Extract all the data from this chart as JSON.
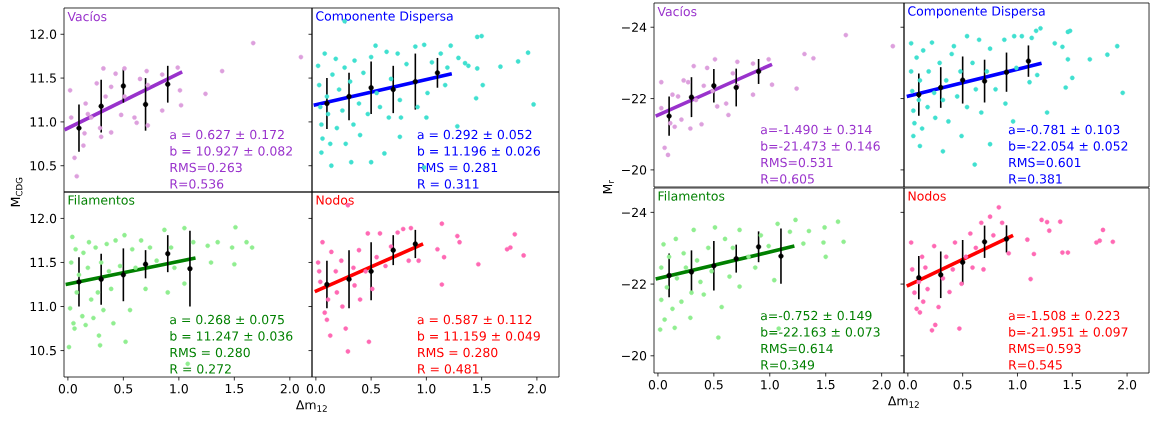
{
  "chart_data": [
    {
      "type": "scatter",
      "title": "Vacíos",
      "ylabel": "M$_{CDG}$",
      "xlim": [
        -0.035,
        2.2
      ],
      "ylim": [
        10.2,
        12.3
      ],
      "yticks": [
        {
          "value": 10.5,
          "label": "10.5"
        },
        {
          "value": 11,
          "label": "11.0"
        },
        {
          "value": 11.5,
          "label": "11.5"
        },
        {
          "value": 12,
          "label": "12.0"
        }
      ],
      "tick_labels": "y",
      "annotations": [
        "a = 0.627 ± 0.172",
        "b = 10.927 ± 0.082",
        "RMS=0.263",
        "R=0.536"
      ],
      "series": [
        {
          "type": "scatter",
          "marker": "circle",
          "color": "#dda0dd",
          "x": [
            0.02,
            0.03,
            0.06,
            0.08,
            0.14,
            0.16,
            0.15,
            0.18,
            0.21,
            0.26,
            0.29,
            0.3,
            0.32,
            0.34,
            0.39,
            0.39,
            0.43,
            0.48,
            0.51,
            0.51,
            0.6,
            0.62,
            0.65,
            0.71,
            0.72,
            0.72,
            0.85,
            0.85,
            0.99,
            1.01,
            1.02,
            1.24,
            1.39,
            1.67,
            2.1
          ],
          "values": [
            11.36,
            11.05,
            10.59,
            10.38,
            10.73,
            11.21,
            10.87,
            11.09,
            11.05,
            11.44,
            10.93,
            10.83,
            11.61,
            11.29,
            11.4,
            10.88,
            11.55,
            11.08,
            11.61,
            11.29,
            11.05,
            10.99,
            11.49,
            11.58,
            10.96,
            11.42,
            11.13,
            11.54,
            11.62,
            11.36,
            11.19,
            11.32,
            11.58,
            11.9,
            11.74
          ]
        },
        {
          "type": "line",
          "marker": "none",
          "color": "#9932cc",
          "x": [
            -0.03,
            1.03
          ],
          "values": [
            10.91,
            11.57
          ]
        },
        {
          "type": "scatter",
          "marker": "circle",
          "color": "#000000",
          "x": [
            0.1,
            0.3,
            0.5,
            0.7,
            0.9
          ],
          "values": [
            10.93,
            11.18,
            11.41,
            11.2,
            11.43
          ],
          "errors": [
            0.27,
            0.3,
            0.19,
            0.3,
            0.21
          ]
        }
      ]
    },
    {
      "type": "scatter",
      "title": "Componente Dispersa",
      "xlim": [
        -0.035,
        2.2
      ],
      "ylim": [
        10.2,
        12.3
      ],
      "yticks": [
        {
          "value": 10.5,
          "label": null
        },
        {
          "value": 11,
          "label": null
        },
        {
          "value": 11.5,
          "label": null
        },
        {
          "value": 12,
          "label": null
        }
      ],
      "tick_labels": false,
      "annotations": [
        "a = 0.292 ± 0.052",
        "b = 11.196 ± 0.026",
        "RMS = 0.281",
        "R = 0.311"
      ],
      "series": [
        {
          "type": "scatter",
          "marker": "circle",
          "color": "#40e0d0",
          "x": [
            0.26,
            1.46,
            1.5,
            1.29,
            1.35,
            1.38,
            1.46,
            1.67,
            1.83,
            1.92,
            1.97,
            1.51,
            1.45,
            1.28,
            0.98,
            0.62,
            0.5,
            0.32,
            0.14,
            0.05,
            0.02,
            0.03,
            0.04,
            0.05,
            0.06,
            0.08,
            0.1,
            0.11,
            0.13,
            0.15,
            0.18,
            0.19,
            0.21,
            0.24,
            0.26,
            0.27,
            0.31,
            0.34,
            0.35,
            0.39,
            0.4,
            0.43,
            0.47,
            0.5,
            0.54,
            0.55,
            0.58,
            0.64,
            0.66,
            0.68,
            0.74,
            0.76,
            0.77,
            0.82,
            0.9,
            0.92,
            0.98,
            1.01,
            1.05,
            1.0,
            1.13,
            1.17,
            1.22,
            1.19,
            0.76
          ],
          "values": [
            12.15,
            11.97,
            11.98,
            11.73,
            11.67,
            11.64,
            11.61,
            11.63,
            11.69,
            11.79,
            11.2,
            11.42,
            11.27,
            10.95,
            10.48,
            10.64,
            10.54,
            10.54,
            10.5,
            10.65,
            11.64,
            11.42,
            11.17,
            10.97,
            10.81,
            11.78,
            11.29,
            11.09,
            10.75,
            11.54,
            11.72,
            10.93,
            11.37,
            11.13,
            11.62,
            10.75,
            11.46,
            10.97,
            11.7,
            11.21,
            10.85,
            11.56,
            11.09,
            11.74,
            11.87,
            11.33,
            11.17,
            11.8,
            11.05,
            11.49,
            11.78,
            11.25,
            11.05,
            11.66,
            11.86,
            11.17,
            11.88,
            11.33,
            11.68,
            11.05,
            11.78,
            11.42,
            11.87,
            11.62,
            10.83
          ]
        },
        {
          "type": "line",
          "marker": "none",
          "color": "#0000ff",
          "x": [
            -0.02,
            1.23
          ],
          "values": [
            11.19,
            11.55
          ]
        },
        {
          "type": "scatter",
          "marker": "circle",
          "color": "#000000",
          "x": [
            0.1,
            0.3,
            0.5,
            0.7,
            0.9,
            1.1
          ],
          "values": [
            11.21,
            11.29,
            11.39,
            11.37,
            11.46,
            11.56
          ],
          "errors": [
            0.29,
            0.27,
            0.3,
            0.27,
            0.32,
            0.17
          ]
        }
      ]
    },
    {
      "type": "scatter",
      "title": "Filamentos",
      "xlabel": "Δm$_{12}$",
      "xlim": [
        -0.035,
        2.2
      ],
      "ylim": [
        10.2,
        12.3
      ],
      "xticks": [
        {
          "value": 0,
          "label": "0.0"
        },
        {
          "value": 0.5,
          "label": "0.5"
        },
        {
          "value": 1,
          "label": "1.0"
        },
        {
          "value": 1.5,
          "label": "1.5"
        },
        {
          "value": 2,
          "label": "2.0"
        }
      ],
      "yticks": [
        {
          "value": 10.5,
          "label": "10.5"
        },
        {
          "value": 11,
          "label": "11.0"
        },
        {
          "value": 11.5,
          "label": "11.5"
        },
        {
          "value": 12,
          "label": "12.0"
        }
      ],
      "annotations": [
        "a = 0.268 ± 0.075",
        "b = 11.247 ± 0.036",
        "RMS = 0.280",
        "R = 0.272"
      ],
      "series": [
        {
          "type": "scatter",
          "marker": "circle",
          "color": "#90ee90",
          "x": [
            0.01,
            0.02,
            0.03,
            0.04,
            0.05,
            0.06,
            0.07,
            0.08,
            0.1,
            0.13,
            0.14,
            0.16,
            0.18,
            0.19,
            0.21,
            0.23,
            0.25,
            0.27,
            0.28,
            0.29,
            0.3,
            0.32,
            0.35,
            0.37,
            0.39,
            0.41,
            0.43,
            0.47,
            0.51,
            0.52,
            0.56,
            0.58,
            0.61,
            0.66,
            0.7,
            0.74,
            0.8,
            0.87,
            0.9,
            0.93,
            0.96,
            1.05,
            1.05,
            1.08,
            1.13,
            1.26,
            1.29,
            1.35,
            1.48,
            1.51,
            1.5,
            1.61,
            1.66
          ],
          "values": [
            10.54,
            10.98,
            11.5,
            11.79,
            10.81,
            10.75,
            11.65,
            11.16,
            11.36,
            10.89,
            11.61,
            10.79,
            11.44,
            11.73,
            11.08,
            10.87,
            11.67,
            11.16,
            10.67,
            10.56,
            11.5,
            10.96,
            11.71,
            11.4,
            11.2,
            10.81,
            11.75,
            11.46,
            11.81,
            10.6,
            10.96,
            11.65,
            11.44,
            11.75,
            11.2,
            11.67,
            11.52,
            11.87,
            11.16,
            11.67,
            11.44,
            11.89,
            11.26,
            10.35,
            11.73,
            11.69,
            11.5,
            11.73,
            11.67,
            11.9,
            11.48,
            11.73,
            11.67
          ]
        },
        {
          "type": "line",
          "marker": "none",
          "color": "#008000",
          "x": [
            -0.02,
            1.15
          ],
          "values": [
            11.25,
            11.55
          ]
        },
        {
          "type": "scatter",
          "marker": "circle",
          "color": "#000000",
          "x": [
            0.1,
            0.3,
            0.5,
            0.7,
            0.9,
            1.1
          ],
          "values": [
            11.28,
            11.31,
            11.36,
            11.48,
            11.6,
            11.43
          ],
          "errors": [
            0.28,
            0.29,
            0.3,
            0.16,
            0.21,
            0.43
          ]
        }
      ]
    },
    {
      "type": "scatter",
      "title": "Nodos",
      "xlim": [
        -0.035,
        2.2
      ],
      "ylim": [
        10.2,
        12.3
      ],
      "xticks": [
        {
          "value": 0,
          "label": "0.0"
        },
        {
          "value": 0.5,
          "label": "0.5"
        },
        {
          "value": 1,
          "label": "1.0"
        },
        {
          "value": 1.5,
          "label": "1.5"
        },
        {
          "value": 2,
          "label": "2.0"
        }
      ],
      "yticks": [
        {
          "value": 10.5,
          "label": null
        },
        {
          "value": 11,
          "label": null
        },
        {
          "value": 11.5,
          "label": null
        },
        {
          "value": 12,
          "label": null
        }
      ],
      "tick_labels": "x",
      "annotations": [
        "a = 0.587 ± 0.112",
        "b = 11.159 ± 0.049",
        "RMS = 0.280",
        "R = 0.481"
      ],
      "series": [
        {
          "type": "scatter",
          "marker": "circle",
          "color": "#ff69b4",
          "x": [
            0.02,
            0.03,
            0.04,
            0.06,
            0.08,
            0.1,
            0.11,
            0.13,
            0.14,
            0.18,
            0.19,
            0.23,
            0.24,
            0.27,
            0.29,
            0.29,
            0.34,
            0.35,
            0.39,
            0.4,
            0.45,
            0.47,
            0.48,
            0.51,
            0.55,
            0.58,
            0.63,
            0.68,
            0.74,
            0.79,
            0.84,
            0.86,
            0.93,
            1.1,
            1.14,
            1.16,
            1.14,
            1.28,
            1.3,
            1.47,
            1.73,
            1.76,
            1.8,
            1.88
          ],
          "values": [
            11.5,
            11.4,
            11.28,
            11.73,
            10.93,
            10.85,
            11.08,
            10.67,
            11.62,
            11.4,
            11.16,
            11.52,
            11.0,
            10.75,
            10.49,
            12.15,
            11.44,
            11.24,
            11.64,
            11.08,
            11.4,
            11.83,
            10.6,
            11.2,
            11.56,
            11.83,
            11.46,
            11.68,
            11.84,
            11.88,
            11.52,
            11.89,
            11.52,
            11.65,
            11.94,
            11.56,
            11.25,
            11.8,
            11.73,
            11.48,
            11.65,
            11.67,
            11.82,
            11.58
          ]
        },
        {
          "type": "line",
          "marker": "none",
          "color": "#ff0000",
          "x": [
            -0.01,
            0.97
          ],
          "values": [
            11.17,
            11.71
          ]
        },
        {
          "type": "scatter",
          "marker": "circle",
          "color": "#000000",
          "x": [
            0.1,
            0.3,
            0.5,
            0.7,
            0.9
          ],
          "values": [
            11.25,
            11.31,
            11.4,
            11.64,
            11.71
          ],
          "errors": [
            0.27,
            0.33,
            0.33,
            0.17,
            0.16
          ]
        }
      ]
    },
    {
      "type": "scatter",
      "title": "Vacíos",
      "ylabel": "M$_{r}$",
      "xlim": [
        -0.035,
        2.2
      ],
      "ylim": [
        -19.52,
        -24.68
      ],
      "yticks": [
        {
          "value": -24,
          "label": "−24"
        },
        {
          "value": -22,
          "label": "−22"
        },
        {
          "value": -20,
          "label": "−20"
        }
      ],
      "tick_labels": "y",
      "annotations": [
        "a=-1.490 ± 0.314",
        "b=-21.473 ± 0.146",
        "RMS=0.531",
        "R=0.605"
      ],
      "series": [
        {
          "type": "scatter",
          "marker": "circle",
          "color": "#dda0dd",
          "x": [
            0.03,
            0.03,
            0.06,
            0.09,
            0.11,
            0.13,
            0.15,
            0.18,
            0.21,
            0.23,
            0.27,
            0.29,
            0.32,
            0.34,
            0.39,
            0.41,
            0.44,
            0.49,
            0.51,
            0.53,
            0.61,
            0.63,
            0.67,
            0.71,
            0.71,
            0.85,
            0.85,
            0.99,
            1.02,
            1.24,
            1.31,
            1.39,
            1.68,
            2.1
          ],
          "values": [
            -22.46,
            -21.73,
            -20.62,
            -20.42,
            -21.31,
            -22.11,
            -21.21,
            -22.06,
            -21.41,
            -22.51,
            -22.46,
            -21.16,
            -22.91,
            -21.96,
            -21.28,
            -22.36,
            -22.86,
            -22.21,
            -23.1,
            -21.78,
            -21.86,
            -21.54,
            -22.71,
            -23.03,
            -22.36,
            -22.11,
            -22.98,
            -23.1,
            -22.39,
            -22.28,
            -23.25,
            -23.13,
            -23.78,
            -23.47
          ]
        },
        {
          "type": "line",
          "marker": "none",
          "color": "#9932cc",
          "x": [
            -0.02,
            1.02
          ],
          "values": [
            -21.51,
            -22.96
          ]
        },
        {
          "type": "scatter",
          "marker": "circle",
          "color": "#000000",
          "x": [
            0.1,
            0.3,
            0.5,
            0.7,
            0.9
          ],
          "values": [
            -21.51,
            -22.04,
            -22.36,
            -22.31,
            -22.76
          ],
          "errors": [
            0.55,
            0.56,
            0.47,
            0.53,
            0.35
          ]
        }
      ]
    },
    {
      "type": "scatter",
      "title": "Componente Dispersa",
      "xlim": [
        -0.035,
        2.2
      ],
      "ylim": [
        -19.52,
        -24.68
      ],
      "yticks": [
        {
          "value": -24,
          "label": null
        },
        {
          "value": -22,
          "label": null
        },
        {
          "value": -20,
          "label": null
        }
      ],
      "tick_labels": false,
      "annotations": [
        "a=-0.781 ± 0.103",
        "b=-22.054 ± 0.052",
        "RMS=0.601",
        "R=0.381"
      ],
      "series": [
        {
          "type": "scatter",
          "marker": "circle",
          "color": "#40e0d0",
          "x": [
            1.21,
            1.17,
            1.46,
            1.48,
            1.34,
            1.41,
            1.46,
            1.66,
            1.82,
            1.91,
            1.96,
            1.5,
            1.44,
            1.27,
            0.96,
            0.75,
            0.61,
            0.32,
            0.11,
            0.05,
            0.49,
            0.03,
            0.03,
            0.04,
            0.05,
            0.06,
            0.08,
            0.1,
            0.11,
            0.13,
            0.14,
            0.18,
            0.19,
            0.22,
            0.24,
            0.25,
            0.29,
            0.32,
            0.35,
            0.37,
            0.4,
            0.42,
            0.45,
            0.48,
            0.54,
            0.54,
            0.59,
            0.62,
            0.65,
            0.67,
            0.72,
            0.75,
            0.8,
            0.88,
            0.89,
            0.97,
            0.99,
            1.04,
            1.13,
            1.18,
            1.11
          ],
          "values": [
            -23.97,
            -23.9,
            -23.87,
            -23.9,
            -23.55,
            -23.45,
            -23.1,
            -23.1,
            -23.23,
            -23.47,
            -22.16,
            -22.58,
            -22.31,
            -21.61,
            -21.36,
            -20.72,
            -20.15,
            -20.52,
            -20.67,
            -20.95,
            -20.95,
            -23.55,
            -22.76,
            -22.21,
            -21.66,
            -21.31,
            -23.15,
            -21.96,
            -22.51,
            -21.16,
            -23.35,
            -21.76,
            -22.76,
            -23.57,
            -22.16,
            -21.46,
            -23.0,
            -21.96,
            -22.51,
            -21.36,
            -23.25,
            -23.47,
            -22.06,
            -22.76,
            -23.75,
            -21.76,
            -23.0,
            -22.26,
            -23.65,
            -21.61,
            -22.76,
            -23.4,
            -22.26,
            -23.65,
            -21.86,
            -23.75,
            -22.86,
            -23.75,
            -23.7,
            -22.66,
            -22.46
          ]
        },
        {
          "type": "line",
          "marker": "none",
          "color": "#0000ff",
          "x": [
            -0.01,
            1.22
          ],
          "values": [
            -22.06,
            -22.99
          ]
        },
        {
          "type": "scatter",
          "marker": "circle",
          "color": "#000000",
          "x": [
            0.1,
            0.3,
            0.5,
            0.7,
            0.9,
            1.1
          ],
          "values": [
            -22.11,
            -22.31,
            -22.52,
            -22.49,
            -22.74,
            -23.05
          ],
          "errors": [
            0.59,
            0.57,
            0.66,
            0.6,
            0.55,
            0.44
          ]
        }
      ]
    },
    {
      "type": "scatter",
      "title": "Filamentos",
      "xlabel": "Δm$_{12}$",
      "xlim": [
        -0.035,
        2.2
      ],
      "ylim": [
        -19.52,
        -24.68
      ],
      "xticks": [
        {
          "value": 0,
          "label": "0.0"
        },
        {
          "value": 0.5,
          "label": "0.5"
        },
        {
          "value": 1,
          "label": "1.0"
        },
        {
          "value": 1.5,
          "label": "1.5"
        },
        {
          "value": 2,
          "label": "2.0"
        }
      ],
      "yticks": [
        {
          "value": -24,
          "label": "−24"
        },
        {
          "value": -22,
          "label": "−22"
        },
        {
          "value": -20,
          "label": "−20"
        }
      ],
      "annotations": [
        "a=-0.752 ± 0.149",
        "b=-22.163 ± 0.073",
        "RMS=0.614",
        "R=0.349"
      ],
      "series": [
        {
          "type": "scatter",
          "marker": "circle",
          "color": "#90ee90",
          "x": [
            0.02,
            0.03,
            0.03,
            0.05,
            0.06,
            0.08,
            0.1,
            0.13,
            0.15,
            0.16,
            0.17,
            0.21,
            0.23,
            0.25,
            0.29,
            0.3,
            0.32,
            0.35,
            0.38,
            0.41,
            0.45,
            0.48,
            0.51,
            0.54,
            0.57,
            0.6,
            0.64,
            0.67,
            0.73,
            0.73,
            0.81,
            0.87,
            0.92,
            0.99,
            1.04,
            1.07,
            1.08,
            1.18,
            1.23,
            1.3,
            1.35,
            1.49,
            1.5,
            1.61,
            1.66,
            1.48
          ],
          "values": [
            -20.73,
            -21.56,
            -22.46,
            -23.11,
            -21.01,
            -21.91,
            -22.76,
            -21.31,
            -20.78,
            -23.26,
            -22.16,
            -21.51,
            -22.86,
            -22.46,
            -21.06,
            -21.76,
            -23.51,
            -22.66,
            -22.06,
            -21.71,
            -23.01,
            -22.36,
            -23.58,
            -20.51,
            -21.36,
            -23.26,
            -22.21,
            -23.01,
            -23.51,
            -21.93,
            -22.76,
            -22.46,
            -23.36,
            -23.06,
            -22.11,
            -23.68,
            -20.76,
            -23.46,
            -23.79,
            -23.13,
            -23.48,
            -23.58,
            -22.76,
            -23.74,
            -23.18,
            -23.16
          ]
        },
        {
          "type": "line",
          "marker": "none",
          "color": "#008000",
          "x": [
            -0.02,
            1.22
          ],
          "values": [
            -22.14,
            -23.06
          ]
        },
        {
          "type": "scatter",
          "marker": "circle",
          "color": "#000000",
          "x": [
            0.1,
            0.3,
            0.5,
            0.7,
            0.9,
            1.1
          ],
          "values": [
            -22.24,
            -22.34,
            -22.51,
            -22.71,
            -23.04,
            -22.78
          ],
          "errors": [
            0.61,
            0.6,
            0.69,
            0.39,
            0.43,
            0.77
          ]
        }
      ]
    },
    {
      "type": "scatter",
      "title": "Nodos",
      "xlim": [
        -0.035,
        2.2
      ],
      "ylim": [
        -19.52,
        -24.68
      ],
      "xticks": [
        {
          "value": 0,
          "label": "0.0"
        },
        {
          "value": 0.5,
          "label": "0.5"
        },
        {
          "value": 1,
          "label": "1.0"
        },
        {
          "value": 1.5,
          "label": "1.5"
        },
        {
          "value": 2,
          "label": "2.0"
        }
      ],
      "yticks": [
        {
          "value": -24,
          "label": null
        },
        {
          "value": -22,
          "label": null
        },
        {
          "value": -20,
          "label": null
        }
      ],
      "tick_labels": "x",
      "annotations": [
        "a=-1.508 ± 0.223",
        "b=-21.951 ± 0.097",
        "RMS=0.593",
        "R=0.545"
      ],
      "series": [
        {
          "type": "scatter",
          "marker": "circle",
          "color": "#ff69b4",
          "x": [
            0.03,
            0.04,
            0.06,
            0.08,
            0.1,
            0.11,
            0.13,
            0.14,
            0.16,
            0.18,
            0.22,
            0.24,
            0.25,
            0.28,
            0.32,
            0.35,
            0.38,
            0.41,
            0.43,
            0.47,
            0.49,
            0.53,
            0.57,
            0.59,
            0.62,
            0.67,
            0.69,
            0.75,
            0.78,
            0.83,
            0.86,
            0.92,
            1.09,
            1.12,
            1.15,
            1.22,
            1.27,
            1.29,
            1.39,
            1.41,
            1.46,
            1.72,
            1.75,
            1.78,
            1.87
          ],
          "values": [
            -23.16,
            -22.41,
            -21.76,
            -21.31,
            -22.06,
            -21.21,
            -22.76,
            -21.51,
            -22.46,
            -21.86,
            -20.71,
            -23.06,
            -20.86,
            -21.36,
            -22.16,
            -22.76,
            -21.78,
            -22.41,
            -23.16,
            -20.76,
            -22.01,
            -22.76,
            -23.41,
            -22.46,
            -23.01,
            -23.71,
            -22.41,
            -23.88,
            -23.36,
            -24.14,
            -23.71,
            -22.86,
            -23.24,
            -22.14,
            -22.84,
            -23.79,
            -23.73,
            -23.49,
            -23.74,
            -22.88,
            -22.88,
            -23.16,
            -23.21,
            -23.51,
            -23.18
          ]
        },
        {
          "type": "line",
          "marker": "none",
          "color": "#ff0000",
          "x": [
            -0.01,
            0.96
          ],
          "values": [
            -21.94,
            -23.36
          ]
        },
        {
          "type": "scatter",
          "marker": "circle",
          "color": "#000000",
          "x": [
            0.1,
            0.3,
            0.5,
            0.7,
            0.9
          ],
          "values": [
            -22.18,
            -22.26,
            -22.61,
            -23.18,
            -23.26
          ],
          "errors": [
            0.6,
            0.65,
            0.62,
            0.45,
            0.38
          ]
        }
      ]
    }
  ]
}
